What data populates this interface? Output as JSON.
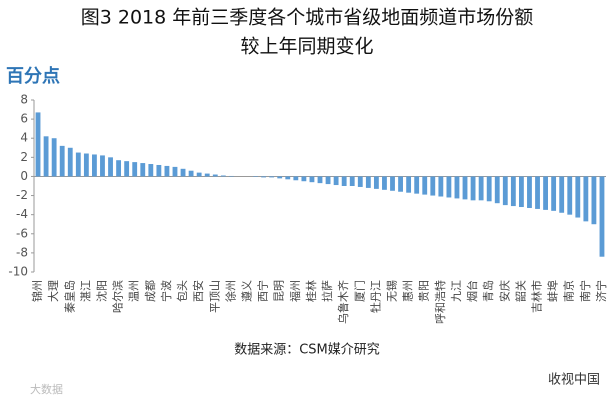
{
  "chart_data": {
    "type": "bar",
    "title": "图3 2018 年前三季度各个城市省级地面频道市场份额",
    "subtitle": "较上年同期变化",
    "y_label": "百分点",
    "source": "数据来源：CSM媒介研究",
    "watermark_left": "大数据",
    "watermark_right": "收视中国",
    "color": "#5b9bd5",
    "categories": [
      "锦州",
      null,
      "大理",
      null,
      "秦皇岛",
      null,
      "湛江",
      null,
      "沈阳",
      null,
      "哈尔滨",
      null,
      "温州",
      null,
      "成都",
      null,
      "宁波",
      null,
      "包头",
      null,
      "西安",
      null,
      "平顶山",
      null,
      "徐州",
      null,
      "遵义",
      null,
      "西宁",
      null,
      "昆明",
      null,
      "福州",
      null,
      "桂林",
      null,
      "拉萨",
      null,
      "乌鲁木齐",
      null,
      "厦门",
      null,
      "牡丹江",
      null,
      "无锡",
      null,
      "惠州",
      null,
      "贵阳",
      null,
      "呼和浩特",
      null,
      "九江",
      null,
      "烟台",
      null,
      "青岛",
      null,
      "安庆",
      null,
      "韶关",
      null,
      "吉林市",
      null,
      "蚌埠",
      null,
      "南京",
      null,
      "南宁",
      null,
      "济宁"
    ],
    "values": [
      6.7,
      4.2,
      4.0,
      3.2,
      3.0,
      2.5,
      2.4,
      2.3,
      2.2,
      2.0,
      1.7,
      1.6,
      1.5,
      1.4,
      1.3,
      1.2,
      1.1,
      1.0,
      0.8,
      0.6,
      0.4,
      0.3,
      0.2,
      0.1,
      0.05,
      0,
      0,
      -0.05,
      -0.1,
      -0.1,
      -0.2,
      -0.3,
      -0.4,
      -0.5,
      -0.6,
      -0.7,
      -0.8,
      -0.9,
      -1.0,
      -1.0,
      -1.1,
      -1.2,
      -1.3,
      -1.4,
      -1.5,
      -1.6,
      -1.7,
      -1.8,
      -1.9,
      -2.0,
      -2.1,
      -2.2,
      -2.3,
      -2.4,
      -2.5,
      -2.5,
      -2.6,
      -2.8,
      -3.0,
      -3.1,
      -3.2,
      -3.3,
      -3.4,
      -3.5,
      -3.6,
      -3.8,
      -4.0,
      -4.3,
      -4.7,
      -5.0,
      -8.4
    ],
    "ylim": [
      -10,
      8
    ],
    "yticks": [
      8,
      6,
      4,
      2,
      0,
      -2,
      -4,
      -6,
      -8,
      -10
    ]
  }
}
